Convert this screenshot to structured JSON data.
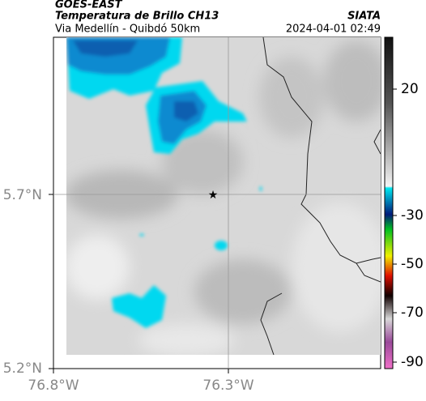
{
  "header": {
    "source": "GOES-EAST",
    "product": "Temperatura de Brillo CH13",
    "route": "Via Medellín - Quibdó 50km",
    "brand": "SIATA",
    "timestamp": "2024-04-01 02:49"
  },
  "axes": {
    "lat_labels": [
      "5.7°N",
      "5.2°N"
    ],
    "lon_labels": [
      "76.8°W",
      "76.3°W"
    ]
  },
  "colorbar": {
    "ticks": [
      20,
      -30,
      -50,
      -70,
      -90
    ]
  }
}
